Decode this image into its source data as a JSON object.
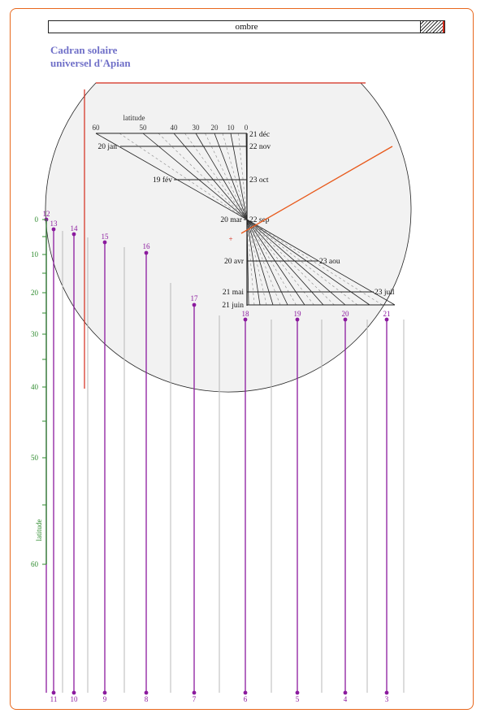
{
  "header": {
    "ombre_label": "ombre",
    "title_line1": "Cadran solaire",
    "title_line2": "universel d'Apian"
  },
  "dial": {
    "latitude_label": "latitude",
    "latitude_ticks": [
      "60",
      "50",
      "40",
      "30",
      "20",
      "10",
      "0"
    ],
    "left_dates": [
      {
        "label": "20 jan"
      },
      {
        "label": "19 fév"
      },
      {
        "label": "20 mar"
      },
      {
        "label": "20 avr"
      },
      {
        "label": "21 mai"
      },
      {
        "label": "21 juin"
      }
    ],
    "right_dates": [
      {
        "label": "21 déc"
      },
      {
        "label": "22 nov"
      },
      {
        "label": "23 oct"
      },
      {
        "label": "22 sep"
      },
      {
        "label": "23 aou"
      },
      {
        "label": "23 juil"
      }
    ],
    "center_mark": "+"
  },
  "scale": {
    "label": "latitude",
    "ticks": [
      "0",
      "10",
      "20",
      "30",
      "40",
      "50",
      "60"
    ]
  },
  "hours": {
    "top": [
      {
        "label": "12"
      },
      {
        "label": "13"
      },
      {
        "label": "14"
      },
      {
        "label": "15"
      },
      {
        "label": "16"
      },
      {
        "label": "17"
      },
      {
        "label": "18"
      },
      {
        "label": "19"
      },
      {
        "label": "20"
      },
      {
        "label": "21"
      }
    ],
    "bottom": [
      {
        "label": "11"
      },
      {
        "label": "10"
      },
      {
        "label": "9"
      },
      {
        "label": "8"
      },
      {
        "label": "7"
      },
      {
        "label": "6"
      },
      {
        "label": "5"
      },
      {
        "label": "4"
      },
      {
        "label": "3"
      }
    ]
  },
  "colors": {
    "frame": "#e8671c",
    "hour": "#8b1a9e",
    "scale": "#2e8b2e",
    "accent_red": "#d42a1a",
    "gnomon": "#e85a1c",
    "title": "#7070c8",
    "disc_fill": "#f2f2f2"
  }
}
